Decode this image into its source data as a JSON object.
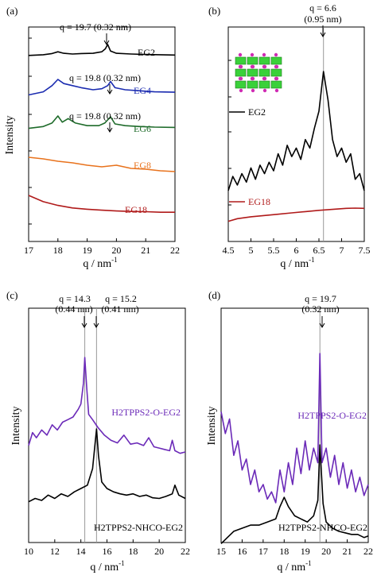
{
  "chart_data": [
    {
      "panel_label": "(a)",
      "type": "line",
      "xlabel": "q / nm",
      "xlabel_sup": "-1",
      "ylabel": "Intensity",
      "xlim": [
        17,
        22
      ],
      "xticks": [
        17,
        18,
        19,
        20,
        21,
        22
      ],
      "annotations": [
        {
          "text": "q = 19.7 (0.32 nm)",
          "x": 19.7,
          "series": "EG2"
        },
        {
          "text": "q = 19.8 (0.32 nm)",
          "x": 19.8,
          "series": "EG4"
        },
        {
          "text": "q = 19.8 (0.32 nm)",
          "x": 19.8,
          "series": "EG6"
        }
      ],
      "series": [
        {
          "name": "EG2",
          "color": "#000000",
          "x": [
            17,
            17.5,
            17.8,
            18,
            18.2,
            18.5,
            18.8,
            19.2,
            19.5,
            19.62,
            19.7,
            19.8,
            20,
            20.5,
            21,
            21.5,
            22
          ],
          "y": [
            8.55,
            8.6,
            8.68,
            8.8,
            8.7,
            8.65,
            8.68,
            8.7,
            8.8,
            9.0,
            9.3,
            8.85,
            8.7,
            8.65,
            8.62,
            8.6,
            8.58
          ]
        },
        {
          "name": "EG4",
          "color": "#1a2bb0",
          "x": [
            17,
            17.5,
            17.8,
            18,
            18.2,
            18.5,
            18.8,
            19.2,
            19.5,
            19.7,
            19.8,
            19.95,
            20.3,
            20.8,
            21.3,
            22
          ],
          "y": [
            6.25,
            6.4,
            6.7,
            7.0,
            6.8,
            6.7,
            6.6,
            6.5,
            6.55,
            6.7,
            6.9,
            6.6,
            6.5,
            6.45,
            6.4,
            6.38
          ]
        },
        {
          "name": "EG6",
          "color": "#1e6b2a",
          "x": [
            17,
            17.5,
            17.8,
            18,
            18.15,
            18.35,
            18.6,
            19,
            19.4,
            19.6,
            19.8,
            19.95,
            20.3,
            20.8,
            21.3,
            22
          ],
          "y": [
            4.65,
            4.75,
            4.95,
            5.35,
            5.0,
            5.2,
            4.95,
            4.8,
            4.8,
            4.95,
            5.3,
            4.9,
            4.8,
            4.75,
            4.72,
            4.7
          ]
        },
        {
          "name": "EG8",
          "color": "#e8721c",
          "x": [
            17,
            17.5,
            18,
            18.5,
            19,
            19.5,
            20,
            20.5,
            21,
            21.5,
            22
          ],
          "y": [
            3.2,
            3.18,
            3.15,
            3.13,
            3.1,
            3.08,
            3.1,
            3.06,
            3.05,
            3.03,
            3.02
          ]
        },
        {
          "name": "EG18",
          "color": "#b01a1a",
          "x": [
            17,
            17.5,
            18,
            18.5,
            19,
            19.5,
            20,
            20.5,
            21,
            21.5,
            22
          ],
          "y": [
            1.95,
            1.7,
            1.55,
            1.45,
            1.4,
            1.36,
            1.33,
            1.31,
            1.3,
            1.28,
            1.28
          ]
        }
      ],
      "ylim": [
        0,
        10
      ]
    },
    {
      "panel_label": "(b)",
      "type": "line",
      "xlabel": "q / nm",
      "xlabel_sup": "-1",
      "xlim": [
        4.5,
        7.5
      ],
      "xticks": [
        4.5,
        5,
        5.5,
        6,
        6.5,
        7,
        7.5
      ],
      "marker_x": 6.6,
      "annotations": [
        {
          "text": "q = 6.6",
          "x": 6.6
        },
        {
          "text": "(0.95 nm)",
          "x": 6.6
        }
      ],
      "series": [
        {
          "name": "EG2",
          "color": "#000000",
          "x": [
            4.5,
            4.6,
            4.7,
            4.8,
            4.9,
            5.0,
            5.1,
            5.2,
            5.3,
            5.4,
            5.5,
            5.6,
            5.7,
            5.8,
            5.9,
            6.0,
            6.1,
            6.2,
            6.3,
            6.4,
            6.5,
            6.6,
            6.7,
            6.8,
            6.9,
            7.0,
            7.1,
            7.2,
            7.3,
            7.4,
            7.5
          ],
          "y": [
            5.0,
            5.5,
            5.2,
            5.6,
            5.3,
            5.8,
            5.4,
            5.9,
            5.6,
            6.0,
            5.7,
            6.3,
            5.9,
            6.6,
            6.2,
            6.5,
            6.1,
            6.8,
            6.5,
            7.2,
            7.8,
            9.2,
            8.2,
            6.8,
            6.2,
            6.5,
            6.0,
            6.3,
            5.4,
            5.6,
            5.0
          ]
        },
        {
          "name": "EG18",
          "color": "#b01a1a",
          "x": [
            4.5,
            4.7,
            5.0,
            5.3,
            5.6,
            5.9,
            6.2,
            6.5,
            6.8,
            7.1,
            7.3,
            7.5
          ],
          "y": [
            0.7,
            0.9,
            1.05,
            1.15,
            1.25,
            1.35,
            1.45,
            1.55,
            1.62,
            1.7,
            1.72,
            1.7
          ]
        }
      ],
      "ylim": [
        0,
        10
      ]
    },
    {
      "panel_label": "(c)",
      "type": "line",
      "xlabel": "q / nm",
      "xlabel_sup": "-1",
      "ylabel": "Intensity",
      "xlim": [
        10,
        22
      ],
      "xticks": [
        10,
        12,
        14,
        16,
        18,
        20,
        22
      ],
      "marker_x": [
        14.3,
        15.2
      ],
      "annotations": [
        {
          "text": "q = 14.3",
          "x": 14.3
        },
        {
          "text": "(0.44 nm)",
          "x": 14.3
        },
        {
          "text": "q = 15.2",
          "x": 15.2
        },
        {
          "text": "(0.41 nm)",
          "x": 15.2
        }
      ],
      "series": [
        {
          "name": "H2TPPS2-O-EG2",
          "color": "#6b2ab8",
          "x": [
            10,
            10.3,
            10.6,
            11,
            11.4,
            11.8,
            12.2,
            12.6,
            13,
            13.4,
            13.8,
            14.0,
            14.2,
            14.3,
            14.45,
            14.6,
            14.9,
            15.3,
            15.8,
            16.3,
            16.8,
            17.3,
            17.8,
            18.3,
            18.8,
            19.2,
            19.6,
            20.0,
            20.4,
            20.8,
            21.0,
            21.2,
            21.6,
            22
          ],
          "y": [
            5.2,
            5.7,
            5.5,
            5.8,
            5.6,
            6.0,
            5.8,
            6.1,
            6.2,
            6.3,
            6.6,
            6.8,
            7.6,
            8.6,
            7.4,
            6.4,
            6.2,
            5.9,
            5.6,
            5.4,
            5.3,
            5.6,
            5.25,
            5.3,
            5.2,
            5.5,
            5.15,
            5.1,
            5.05,
            5.0,
            5.4,
            5.0,
            4.9,
            4.95
          ]
        },
        {
          "name": "H2TPPS2-NHCO-EG2",
          "color": "#000000",
          "x": [
            10,
            10.5,
            11,
            11.5,
            12,
            12.5,
            13,
            13.5,
            14,
            14.5,
            14.9,
            15.1,
            15.2,
            15.35,
            15.6,
            16,
            16.5,
            17,
            17.5,
            18,
            18.5,
            19,
            19.5,
            20,
            20.5,
            21,
            21.2,
            21.5,
            22
          ],
          "y": [
            1.7,
            1.75,
            1.72,
            1.8,
            1.75,
            1.82,
            1.78,
            1.85,
            1.9,
            1.95,
            2.2,
            2.6,
            2.8,
            2.4,
            2.0,
            1.9,
            1.85,
            1.82,
            1.8,
            1.82,
            1.78,
            1.8,
            1.76,
            1.75,
            1.78,
            1.82,
            1.95,
            1.8,
            1.75
          ]
        }
      ],
      "ylim": [
        0,
        10
      ]
    },
    {
      "panel_label": "(d)",
      "type": "line",
      "xlabel": "q / nm",
      "xlabel_sup": "-1",
      "ylabel": "Intensity",
      "xlim": [
        15,
        22
      ],
      "xticks": [
        15,
        16,
        17,
        18,
        19,
        20,
        21,
        22
      ],
      "marker_x": 19.7,
      "annotations": [
        {
          "text": "q = 19.7",
          "x": 19.7
        },
        {
          "text": "(0.32 nm)",
          "x": 19.7
        }
      ],
      "series": [
        {
          "name": "H2TPPS2-O-EG2",
          "color": "#6b2ab8",
          "x": [
            15,
            15.2,
            15.4,
            15.6,
            15.8,
            16.0,
            16.2,
            16.4,
            16.6,
            16.8,
            17.0,
            17.2,
            17.4,
            17.6,
            17.8,
            18.0,
            18.2,
            18.4,
            18.6,
            18.8,
            19.0,
            19.2,
            19.4,
            19.6,
            19.7,
            19.8,
            20.0,
            20.2,
            20.4,
            20.6,
            20.8,
            21.0,
            21.2,
            21.4,
            21.6,
            21.8,
            22
          ],
          "y": [
            6.6,
            6.3,
            6.5,
            6.0,
            6.2,
            5.8,
            5.95,
            5.6,
            5.8,
            5.5,
            5.6,
            5.4,
            5.5,
            5.35,
            5.8,
            5.5,
            5.9,
            5.6,
            6.1,
            5.75,
            6.2,
            5.8,
            6.1,
            5.9,
            7.4,
            5.9,
            6.1,
            5.7,
            6.0,
            5.6,
            5.9,
            5.55,
            5.8,
            5.5,
            5.7,
            5.45,
            5.6
          ]
        },
        {
          "name": "H2TPPS2-NHCO-EG2",
          "color": "#000000",
          "x": [
            15,
            15.3,
            15.6,
            16.0,
            16.4,
            16.8,
            17.2,
            17.6,
            17.8,
            18.0,
            18.2,
            18.5,
            18.8,
            19.1,
            19.4,
            19.6,
            19.7,
            19.85,
            20.0,
            20.3,
            20.6,
            20.9,
            21.2,
            21.5,
            21.8,
            22
          ],
          "y": [
            1.4,
            1.6,
            1.8,
            1.9,
            2.0,
            2.0,
            2.1,
            2.2,
            2.6,
            2.9,
            2.6,
            2.3,
            2.2,
            2.1,
            2.3,
            2.8,
            4.6,
            2.7,
            2.1,
            1.9,
            1.8,
            1.75,
            1.7,
            1.7,
            1.6,
            1.65
          ]
        }
      ],
      "ylim": [
        0,
        10
      ]
    }
  ]
}
